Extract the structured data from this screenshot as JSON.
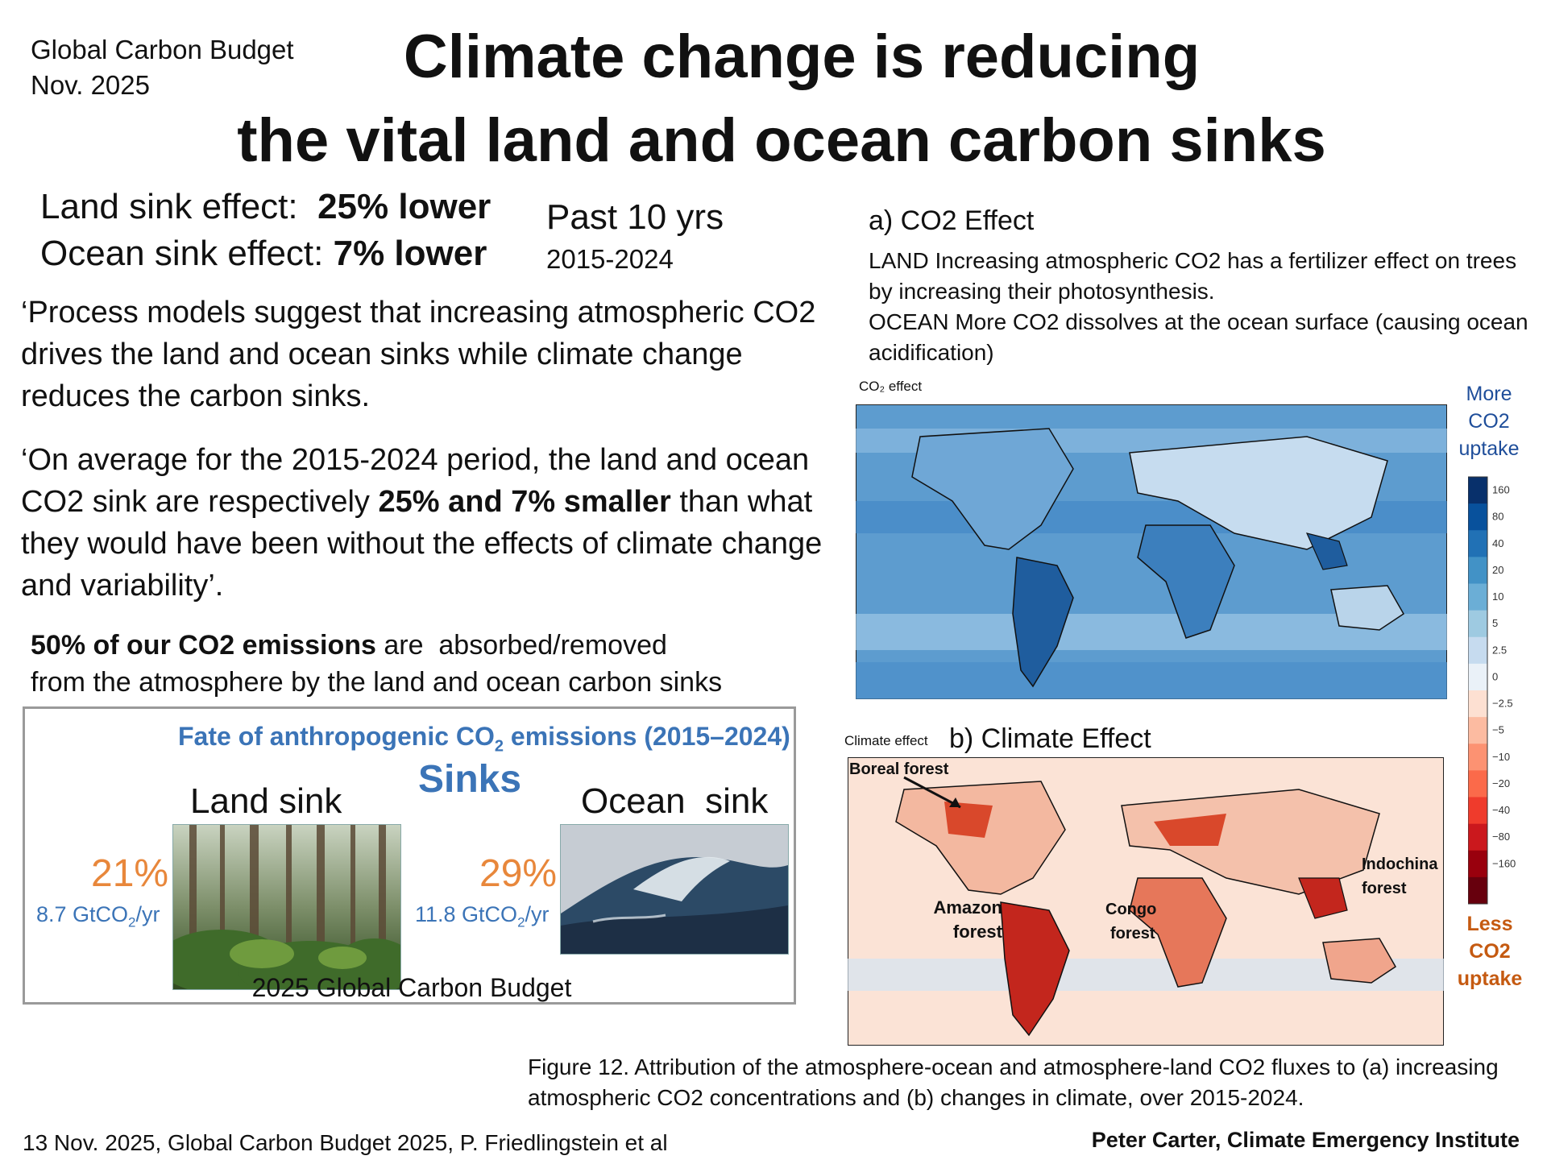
{
  "corner": {
    "line1": "Global Carbon Budget",
    "line2": "Nov. 2025"
  },
  "title": {
    "line1": "Climate change is reducing",
    "line2": "the vital land and ocean carbon sinks"
  },
  "summary": {
    "land_label": "Land sink effect:  ",
    "land_value": "25% lower",
    "ocean_label": "Ocean sink effect: ",
    "ocean_value": "7% lower",
    "period_label": "Past 10 yrs",
    "period_years": "2015-2024"
  },
  "quote1": "‘Process models suggest that increasing atmospheric CO2 drives the land and ocean sinks while climate change reduces the carbon sinks.",
  "quote2": {
    "pre": "‘On average for the 2015-2024 period, the land and ocean CO2 sink are respectively ",
    "bold": "25% and 7% smaller",
    "post": " than what they would have been without the effects of climate change and variability’."
  },
  "fifty": {
    "bold": "50% of our CO2 emissions",
    "rest1": " are  absorbed/removed",
    "rest2": "from the atmosphere by the land and ocean carbon sinks"
  },
  "fate_box": {
    "title_pre": "Fate of anthropogenic CO",
    "title_sub": "2",
    "title_post": " emissions (2015–2024)",
    "sinks": "Sinks",
    "land_sink": "Land sink",
    "ocean_sink": "Ocean  sink",
    "land_pct": "21%",
    "land_flux": "8.7 GtCO",
    "land_flux_sub": "2",
    "land_flux_unit": "/yr",
    "ocean_pct": "29%",
    "ocean_flux": "11.8 GtCO",
    "ocean_flux_sub": "2",
    "ocean_flux_unit": "/yr",
    "land_fraction": 0.21,
    "ocean_fraction": 0.29,
    "source": "2025 Global Carbon Budget"
  },
  "co2_effect": {
    "heading": "a) CO2 Effect",
    "land": "LAND Increasing atmospheric CO2 has a fertilizer effect on trees by increasing their photosynthesis.",
    "ocean": "OCEAN More CO2 dissolves at the ocean surface (causing ocean acidification)",
    "map_label": "CO₂ effect"
  },
  "climate_effect": {
    "map_label": "Climate effect",
    "heading": "b) Climate Effect",
    "regions": {
      "boreal": "Boreal forest",
      "amazon1": "Amazon",
      "amazon2": "forest",
      "congo1": "Congo",
      "congo2": "forest",
      "indochina1": "Indochina",
      "indochina2": "forest"
    }
  },
  "legend": {
    "top1": "More",
    "top2": "CO2",
    "top3": "uptake",
    "bot1": "Less",
    "bot2": "CO2",
    "bot3": "uptake",
    "ticks": [
      "160",
      "80",
      "40",
      "20",
      "10",
      "5",
      "2.5",
      "0",
      "−2.5",
      "−5",
      "−10",
      "−20",
      "−40",
      "−80",
      "−160"
    ],
    "colors": [
      "#08306b",
      "#08519c",
      "#2171b5",
      "#4292c6",
      "#6baed6",
      "#9ecae1",
      "#c6dbef",
      "#eaf1f8",
      "#fde0d2",
      "#fcbba1",
      "#fc9272",
      "#fb6a4a",
      "#ef3b2c",
      "#cb181d",
      "#99000d",
      "#67000d"
    ]
  },
  "figure_caption": "Figure 12. Attribution of the atmosphere-ocean and atmosphere-land CO2 fluxes to (a) increasing atmospheric CO2 concentrations and (b) changes in climate, over 2015-2024.",
  "citation": "13 Nov. 2025, Global Carbon Budget 2025, P. Friedlingstein et al",
  "author": "Peter Carter, Climate Emergency Institute"
}
